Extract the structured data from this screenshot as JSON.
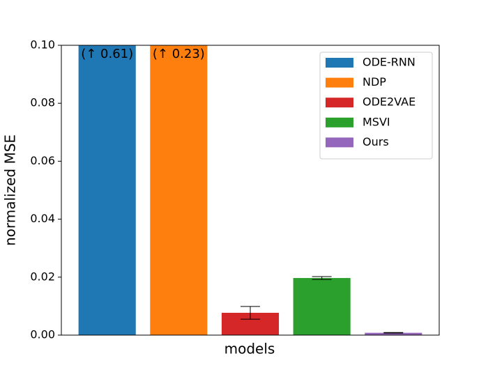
{
  "chart_data": {
    "type": "bar",
    "xlabel": "models",
    "ylabel": "normalized MSE",
    "ylim": [
      0,
      0.1
    ],
    "yticks": [
      {
        "value": 0,
        "label": "0.00"
      },
      {
        "value": 0.02,
        "label": "0.02"
      },
      {
        "value": 0.04,
        "label": "0.04"
      },
      {
        "value": 0.06,
        "label": "0.06"
      },
      {
        "value": 0.08,
        "label": "0.08"
      },
      {
        "value": 0.1,
        "label": "0.10"
      }
    ],
    "legend": "upper right",
    "series": [
      {
        "name": "ODE-RNN",
        "color": "#1f77b4",
        "values": [
          0.61
        ],
        "value_labels": [
          "(↑ 0.61)"
        ]
      },
      {
        "name": "NDP",
        "color": "#ff7f0e",
        "values": [
          0.23
        ],
        "value_labels": [
          "(↑ 0.23)"
        ]
      },
      {
        "name": "ODE2VAE",
        "color": "#d62728",
        "values": [
          0.0077
        ],
        "errors": [
          0.0022
        ]
      },
      {
        "name": "MSVI",
        "color": "#2ca02c",
        "values": [
          0.0197
        ],
        "errors": [
          0.0005
        ]
      },
      {
        "name": "Ours",
        "color": "#9467bd",
        "values": [
          0.0008
        ],
        "errors": [
          0.0001
        ]
      }
    ]
  }
}
